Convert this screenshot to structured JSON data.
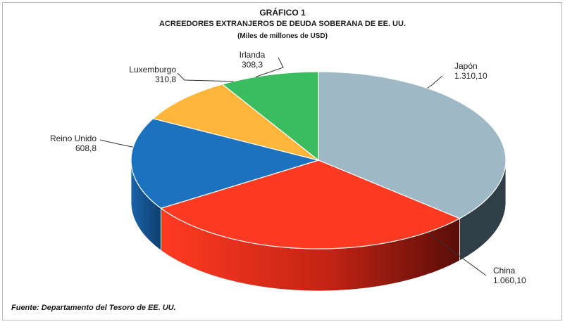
{
  "header": {
    "figure_label": "GRÁFICO 1",
    "title": "ACREEDORES EXTRANJEROS DE DEUDA SOBERANA DE EE. UU.",
    "subtitle": "(Miles de millones de USD)"
  },
  "chart_data": {
    "type": "pie",
    "title": "ACREEDORES EXTRANJEROS DE DEUDA SOBERANA DE EE. UU.",
    "unit": "(Miles de millones de USD)",
    "slices": [
      {
        "name": "Japón",
        "value": 1310.1,
        "label": "1.310,10",
        "color": "#9fb8c6"
      },
      {
        "name": "China",
        "value": 1060.1,
        "label": "1.060,10",
        "color": "#ff3a22"
      },
      {
        "name": "Reino Unido",
        "value": 608.8,
        "label": "608,8",
        "color": "#1d72c0"
      },
      {
        "name": "Luxemburgo",
        "value": 310.8,
        "label": "310,8",
        "color": "#ffb43a"
      },
      {
        "name": "Irlanda",
        "value": 308.3,
        "label": "308,3",
        "color": "#3bbc5f"
      }
    ]
  },
  "footer": {
    "source": "Fuente: Departamento del Tesoro de EE. UU."
  }
}
